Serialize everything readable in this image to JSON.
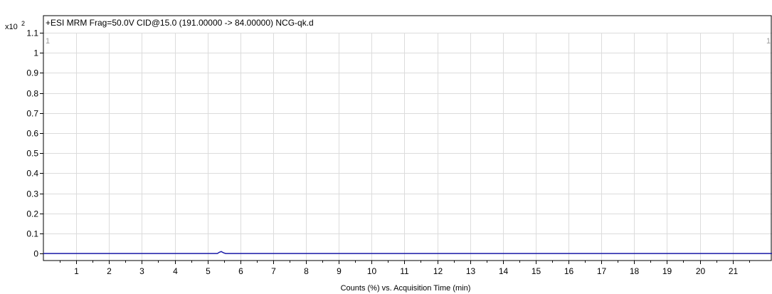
{
  "chart_data": {
    "type": "line",
    "title": "+ESI MRM Frag=50.0V CID@15.0 (191.00000 -> 84.00000) NCG-qk.d",
    "xlabel": "Counts (%) vs. Acquisition Time (min)",
    "y_multiplier_base": "x10",
    "y_multiplier_exp": "2",
    "corner_left_label": "1",
    "corner_right_label": "1",
    "xlim": [
      0,
      22.2
    ],
    "ylim": [
      0,
      1.1
    ],
    "x_ticks": [
      1,
      2,
      3,
      4,
      5,
      6,
      7,
      8,
      9,
      10,
      11,
      12,
      13,
      14,
      15,
      16,
      17,
      18,
      19,
      20,
      21
    ],
    "y_ticks": [
      0,
      0.1,
      0.2,
      0.3,
      0.4,
      0.5,
      0.6,
      0.7,
      0.8,
      0.9,
      1,
      1.1
    ],
    "y_tick_labels": [
      "0",
      "0.1",
      "0.2",
      "0.3",
      "0.4",
      "0.5",
      "0.6",
      "0.7",
      "0.8",
      "0.9",
      "1",
      "1.1"
    ],
    "grid": true,
    "series": [
      {
        "color": "#1a1aa8",
        "x": [
          0,
          5.3,
          5.36,
          5.42,
          5.48,
          5.55,
          22.2
        ],
        "y": [
          0,
          0,
          0.006,
          0.01,
          0.004,
          0,
          0
        ]
      }
    ]
  }
}
